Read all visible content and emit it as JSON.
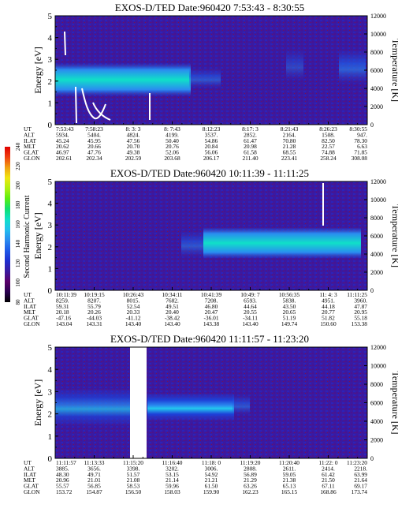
{
  "colorbar": {
    "label": "Second Harmonic Current",
    "ticks": [
      "240",
      "220",
      "200",
      "180",
      "160",
      "140",
      "120",
      "100",
      "80"
    ],
    "colors": [
      "#000000",
      "#2a0050",
      "#5a006a",
      "#3a1aa0",
      "#1e2fd0",
      "#1e5ae8",
      "#2a8cf0",
      "#22c0ee",
      "#10e0c8",
      "#10e070",
      "#5aee10",
      "#b0f010",
      "#f0e610",
      "#f0a010",
      "#f04010",
      "#e00000"
    ]
  },
  "chart_data": [
    {
      "type": "heatmap",
      "title": "EXOS-D/TED   Date:960420  7:53:43 - 8:30:55",
      "ylabel": "Energy [eV]",
      "y2label": "Temperature [K]",
      "ylim": [
        0,
        5
      ],
      "y2lim": [
        0,
        12000
      ],
      "yticks": [
        "0",
        "1",
        "2",
        "3",
        "4",
        "5"
      ],
      "y2ticks": [
        "0",
        "2000",
        "4000",
        "6000",
        "8000",
        "10000",
        "12000"
      ],
      "table": {
        "labels": [
          "UT",
          "ALT",
          "ILAT",
          "MLT",
          "GLAT",
          "GLON"
        ],
        "columns": [
          [
            "7:53:43",
            "5934.",
            "45.24",
            "20.62",
            "46.97",
            "202.61"
          ],
          [
            "7:58:23",
            "5404.",
            "45.95",
            "20.66",
            "47.76",
            "202.34"
          ],
          [
            "8: 3: 3",
            "4824.",
            "47.56",
            "20.70",
            "49.38",
            "202.59"
          ],
          [
            "8: 7:43",
            "4199.",
            "50.40",
            "20.76",
            "52.06",
            "203.68"
          ],
          [
            "8:12:23",
            "3537.",
            "54.86",
            "20.84",
            "56.06",
            "206.17"
          ],
          [
            "8:17: 3",
            "2852.",
            "61.47",
            "20.98",
            "61.58",
            "211.40"
          ],
          [
            "8:21:43",
            "2164.",
            "70.80",
            "21.28",
            "68.55",
            "223.41"
          ],
          [
            "8:26:23",
            "1508.",
            "82.50",
            "22.57",
            "74.88",
            "258.24"
          ],
          [
            "8:30:55",
            "947.",
            "78.30",
            "6.63",
            "71.85",
            "308.08"
          ]
        ]
      }
    },
    {
      "type": "heatmap",
      "title": "EXOS-D/TED   Date:960420  10:11:39 - 11:11:25",
      "ylabel": "Energy [eV]",
      "y2label": "Temperature [K]",
      "ylim": [
        0,
        5
      ],
      "y2lim": [
        0,
        12000
      ],
      "yticks": [
        "0",
        "1",
        "2",
        "3",
        "4",
        "5"
      ],
      "y2ticks": [
        "0",
        "2000",
        "4000",
        "6000",
        "8000",
        "10000",
        "12000"
      ],
      "table": {
        "labels": [
          "UT",
          "ALT",
          "ILAT",
          "MLT",
          "GLAT",
          "GLON"
        ],
        "columns": [
          [
            "10:11:39",
            "8259.",
            "59.31",
            "20.18",
            "-47.16",
            "143.04"
          ],
          [
            "10:19:15",
            "8207.",
            "55.79",
            "20.26",
            "-44.03",
            "143.31"
          ],
          [
            "10:26:43",
            "8015.",
            "52.54",
            "20.33",
            "-41.12",
            "143.40"
          ],
          [
            "10:34:11",
            "7682.",
            "49.51",
            "20.40",
            "-38.42",
            "143.40"
          ],
          [
            "10:41:39",
            "7208.",
            "46.80",
            "20.47",
            "-36.01",
            "143.38"
          ],
          [
            "10:49: 7",
            "6593.",
            "44.64",
            "20.55",
            "-34.11",
            "143.40"
          ],
          [
            "10:56:35",
            "5838.",
            "43.50",
            "20.65",
            "51.19",
            "149.74"
          ],
          [
            "11: 4: 3",
            "4951.",
            "44.18",
            "20.77",
            "51.82",
            "150.60"
          ],
          [
            "11:11:25",
            "3960.",
            "47.87",
            "20.95",
            "55.18",
            "153.38"
          ]
        ]
      }
    },
    {
      "type": "heatmap",
      "title": "EXOS-D/TED   Date:960420  11:11:57 - 11:23:20",
      "ylabel": "Energy [eV]",
      "y2label": "Temperature [K]",
      "ylim": [
        0,
        5
      ],
      "y2lim": [
        0,
        12000
      ],
      "yticks": [
        "0",
        "1",
        "2",
        "3",
        "4",
        "5"
      ],
      "y2ticks": [
        "0",
        "2000",
        "4000",
        "6000",
        "8000",
        "10000",
        "12000"
      ],
      "table": {
        "labels": [
          "UT",
          "ALT",
          "ILAT",
          "MLT",
          "GLAT",
          "GLON"
        ],
        "columns": [
          [
            "11:11:57",
            "3885.",
            "48.30",
            "20.96",
            "55.57",
            "153.72"
          ],
          [
            "11:13:33",
            "3656.",
            "49.71",
            "21.01",
            "56.85",
            "154.87"
          ],
          [
            "11:15:20",
            "3398.",
            "51.57",
            "21.08",
            "58.53",
            "156.50"
          ],
          [
            "11:16:40",
            "3202.",
            "53.15",
            "21.14",
            "59.96",
            "158.03"
          ],
          [
            "11:18: 0",
            "3006.",
            "54.92",
            "21.21",
            "61.50",
            "159.90"
          ],
          [
            "11:19:20",
            "2808.",
            "56.89",
            "21.29",
            "63.26",
            "162.23"
          ],
          [
            "11:20:40",
            "2611.",
            "59.05",
            "21.38",
            "65.13",
            "165.15"
          ],
          [
            "11:22: 0",
            "2414.",
            "61.42",
            "21.50",
            "67.11",
            "168.86"
          ],
          [
            "11:23:20",
            "2218.",
            "63.99",
            "21.64",
            "69.17",
            "173.74"
          ]
        ]
      }
    }
  ]
}
